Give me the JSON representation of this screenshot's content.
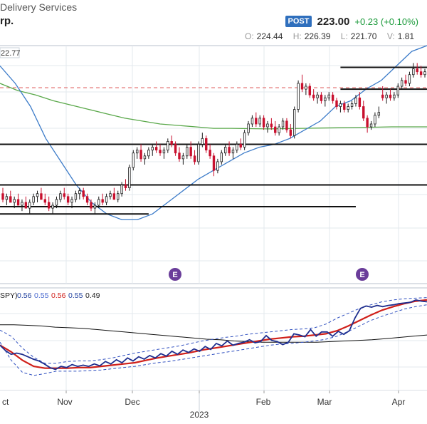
{
  "header": {
    "sector_text": "Delivery Services",
    "name_text": "rp.",
    "post_badge": "POST",
    "price": "223.00",
    "change": "+0.23 (+0.10%)",
    "ohlc": [
      {
        "key": "O:",
        "value": "224.44"
      },
      {
        "key": "H:",
        "value": "226.39"
      },
      {
        "key": "L:",
        "value": "221.70"
      },
      {
        "key": "V:",
        "value": "1.81"
      }
    ],
    "price_tag": "22.77",
    "indicator_label": "SPY)",
    "indicator_values": [
      {
        "text": "0.56",
        "color": "#1f3f9e"
      },
      {
        "text": "0.55",
        "color": "#4a6ad0"
      },
      {
        "text": "0.56",
        "color": "#d0201a"
      },
      {
        "text": "0.55",
        "color": "#1f3f9e"
      },
      {
        "text": "0.49",
        "color": "#222222"
      }
    ]
  },
  "colors": {
    "up": "#1a1a1a",
    "down": "#c8102e",
    "sma_fast": "#3d7cc9",
    "sma_slow": "#5aa84a",
    "resistance": "#e06666",
    "earnings_badge": "#6a3d9a",
    "rs_line": "#1f2f8f",
    "rs_sma": "#d0201a",
    "rs_band": "#3050c0",
    "rs_long": "#111111",
    "grid": "#e3e8ee"
  },
  "chart_data": {
    "type": "candlestick",
    "x_axis": {
      "months": [
        "ct",
        "Nov",
        "Dec",
        "Feb",
        "Mar",
        "Apr"
      ],
      "year_label": "2023"
    },
    "earnings_markers": [
      "E",
      "E"
    ],
    "price_panel": {
      "y_range": [
        150,
        232
      ],
      "resistance_level": 217.5,
      "horizontal_levels": [
        {
          "from_bar": 88,
          "to_bar": 148,
          "y": 224.5
        },
        {
          "from_bar": 88,
          "to_bar": 138,
          "y": 217.0
        },
        {
          "from_bar": 0,
          "to_bar": 160,
          "y": 198.0
        },
        {
          "from_bar": 0,
          "to_bar": 195,
          "y": 184.0
        },
        {
          "from_bar": 0,
          "to_bar": 92,
          "y": 176.5
        },
        {
          "from_bar": 0,
          "to_bar": 38,
          "y": 174.0
        }
      ],
      "sma_fast": [
        225,
        219,
        211,
        200,
        192,
        184,
        178,
        174,
        172,
        172,
        174,
        178,
        182,
        186,
        189,
        192,
        195,
        197,
        198,
        200,
        203,
        206,
        211,
        213,
        217,
        220,
        225,
        230,
        232
      ],
      "sma_slow": [
        219,
        216.5,
        215,
        213,
        211.5,
        210,
        208.5,
        207,
        206,
        205,
        204.5,
        204,
        203.5,
        203.5,
        203.4,
        203.3,
        203.4,
        203.5,
        203.6,
        203.7,
        203.8,
        203.9,
        204,
        204,
        204
      ],
      "candles": [
        {
          "o": 181,
          "h": 183,
          "l": 178,
          "c": 179
        },
        {
          "o": 179,
          "h": 181,
          "l": 177,
          "c": 180
        },
        {
          "o": 180,
          "h": 182,
          "l": 178,
          "c": 178
        },
        {
          "o": 178,
          "h": 180,
          "l": 176,
          "c": 179
        },
        {
          "o": 179,
          "h": 181,
          "l": 177,
          "c": 177
        },
        {
          "o": 177,
          "h": 179,
          "l": 175,
          "c": 178
        },
        {
          "o": 178,
          "h": 180,
          "l": 176,
          "c": 176
        },
        {
          "o": 176,
          "h": 179,
          "l": 174,
          "c": 178
        },
        {
          "o": 178,
          "h": 181,
          "l": 177,
          "c": 180
        },
        {
          "o": 180,
          "h": 182,
          "l": 178,
          "c": 181
        },
        {
          "o": 181,
          "h": 183,
          "l": 179,
          "c": 179
        },
        {
          "o": 179,
          "h": 181,
          "l": 177,
          "c": 178
        },
        {
          "o": 178,
          "h": 180,
          "l": 175,
          "c": 176
        },
        {
          "o": 176,
          "h": 178,
          "l": 174,
          "c": 177
        },
        {
          "o": 177,
          "h": 180,
          "l": 176,
          "c": 179
        },
        {
          "o": 179,
          "h": 182,
          "l": 178,
          "c": 181
        },
        {
          "o": 181,
          "h": 183,
          "l": 179,
          "c": 180
        },
        {
          "o": 180,
          "h": 181,
          "l": 177,
          "c": 178
        },
        {
          "o": 178,
          "h": 180,
          "l": 176,
          "c": 179
        },
        {
          "o": 179,
          "h": 182,
          "l": 178,
          "c": 181
        },
        {
          "o": 181,
          "h": 183,
          "l": 179,
          "c": 182
        },
        {
          "o": 182,
          "h": 183,
          "l": 179,
          "c": 180
        },
        {
          "o": 180,
          "h": 181,
          "l": 177,
          "c": 178
        },
        {
          "o": 178,
          "h": 179,
          "l": 175,
          "c": 176
        },
        {
          "o": 176,
          "h": 178,
          "l": 174,
          "c": 177
        },
        {
          "o": 177,
          "h": 180,
          "l": 176,
          "c": 179
        },
        {
          "o": 179,
          "h": 181,
          "l": 177,
          "c": 178
        },
        {
          "o": 178,
          "h": 181,
          "l": 177,
          "c": 180
        },
        {
          "o": 180,
          "h": 182,
          "l": 179,
          "c": 181
        },
        {
          "o": 181,
          "h": 183,
          "l": 179,
          "c": 179
        },
        {
          "o": 179,
          "h": 182,
          "l": 178,
          "c": 181
        },
        {
          "o": 181,
          "h": 185,
          "l": 180,
          "c": 184
        },
        {
          "o": 184,
          "h": 186,
          "l": 182,
          "c": 183
        },
        {
          "o": 183,
          "h": 191,
          "l": 182,
          "c": 190
        },
        {
          "o": 190,
          "h": 196,
          "l": 189,
          "c": 195
        },
        {
          "o": 195,
          "h": 197,
          "l": 193,
          "c": 196
        },
        {
          "o": 196,
          "h": 198,
          "l": 192,
          "c": 193
        },
        {
          "o": 193,
          "h": 195,
          "l": 191,
          "c": 194
        },
        {
          "o": 194,
          "h": 197,
          "l": 193,
          "c": 196
        },
        {
          "o": 196,
          "h": 198,
          "l": 194,
          "c": 197
        },
        {
          "o": 197,
          "h": 199,
          "l": 195,
          "c": 196
        },
        {
          "o": 196,
          "h": 198,
          "l": 194,
          "c": 195
        },
        {
          "o": 195,
          "h": 197,
          "l": 193,
          "c": 196
        },
        {
          "o": 196,
          "h": 200,
          "l": 195,
          "c": 199
        },
        {
          "o": 199,
          "h": 201,
          "l": 197,
          "c": 198
        },
        {
          "o": 198,
          "h": 199,
          "l": 194,
          "c": 195
        },
        {
          "o": 195,
          "h": 197,
          "l": 192,
          "c": 193
        },
        {
          "o": 193,
          "h": 195,
          "l": 191,
          "c": 194
        },
        {
          "o": 194,
          "h": 198,
          "l": 193,
          "c": 197
        },
        {
          "o": 197,
          "h": 199,
          "l": 193,
          "c": 194
        },
        {
          "o": 194,
          "h": 196,
          "l": 191,
          "c": 192
        },
        {
          "o": 192,
          "h": 199,
          "l": 191,
          "c": 198
        },
        {
          "o": 198,
          "h": 202,
          "l": 197,
          "c": 200
        },
        {
          "o": 200,
          "h": 201,
          "l": 195,
          "c": 196
        },
        {
          "o": 196,
          "h": 198,
          "l": 193,
          "c": 194
        },
        {
          "o": 194,
          "h": 195,
          "l": 187,
          "c": 189
        },
        {
          "o": 189,
          "h": 193,
          "l": 188,
          "c": 192
        },
        {
          "o": 192,
          "h": 196,
          "l": 191,
          "c": 195
        },
        {
          "o": 195,
          "h": 198,
          "l": 194,
          "c": 197
        },
        {
          "o": 197,
          "h": 199,
          "l": 194,
          "c": 195
        },
        {
          "o": 195,
          "h": 197,
          "l": 193,
          "c": 196
        },
        {
          "o": 196,
          "h": 199,
          "l": 195,
          "c": 198
        },
        {
          "o": 198,
          "h": 200,
          "l": 196,
          "c": 197
        },
        {
          "o": 197,
          "h": 203,
          "l": 196,
          "c": 202
        },
        {
          "o": 202,
          "h": 206,
          "l": 201,
          "c": 205
        },
        {
          "o": 205,
          "h": 208,
          "l": 204,
          "c": 207
        },
        {
          "o": 207,
          "h": 209,
          "l": 204,
          "c": 205
        },
        {
          "o": 205,
          "h": 208,
          "l": 204,
          "c": 207
        },
        {
          "o": 207,
          "h": 208,
          "l": 203,
          "c": 204
        },
        {
          "o": 204,
          "h": 206,
          "l": 202,
          "c": 205
        },
        {
          "o": 205,
          "h": 207,
          "l": 203,
          "c": 204
        },
        {
          "o": 204,
          "h": 206,
          "l": 201,
          "c": 202
        },
        {
          "o": 202,
          "h": 205,
          "l": 201,
          "c": 204
        },
        {
          "o": 204,
          "h": 207,
          "l": 203,
          "c": 206
        },
        {
          "o": 206,
          "h": 207,
          "l": 202,
          "c": 203
        },
        {
          "o": 203,
          "h": 205,
          "l": 200,
          "c": 201
        },
        {
          "o": 201,
          "h": 211,
          "l": 200,
          "c": 210
        },
        {
          "o": 210,
          "h": 220,
          "l": 209,
          "c": 219
        },
        {
          "o": 219,
          "h": 222,
          "l": 216,
          "c": 217
        },
        {
          "o": 217,
          "h": 219,
          "l": 215,
          "c": 218
        },
        {
          "o": 218,
          "h": 219,
          "l": 214,
          "c": 215
        },
        {
          "o": 215,
          "h": 217,
          "l": 213,
          "c": 214
        },
        {
          "o": 214,
          "h": 216,
          "l": 212,
          "c": 215
        },
        {
          "o": 215,
          "h": 216,
          "l": 212,
          "c": 213
        },
        {
          "o": 213,
          "h": 215,
          "l": 211,
          "c": 214
        },
        {
          "o": 214,
          "h": 216,
          "l": 213,
          "c": 215
        },
        {
          "o": 215,
          "h": 216,
          "l": 212,
          "c": 213
        },
        {
          "o": 213,
          "h": 214,
          "l": 210,
          "c": 211
        },
        {
          "o": 211,
          "h": 213,
          "l": 209,
          "c": 212
        },
        {
          "o": 212,
          "h": 213,
          "l": 209,
          "c": 210
        },
        {
          "o": 210,
          "h": 212,
          "l": 209,
          "c": 211
        },
        {
          "o": 211,
          "h": 213,
          "l": 210,
          "c": 212
        },
        {
          "o": 212,
          "h": 215,
          "l": 211,
          "c": 214
        },
        {
          "o": 214,
          "h": 216,
          "l": 210,
          "c": 211
        },
        {
          "o": 211,
          "h": 213,
          "l": 206,
          "c": 207
        },
        {
          "o": 207,
          "h": 208,
          "l": 202,
          "c": 204
        },
        {
          "o": 204,
          "h": 206,
          "l": 203,
          "c": 205
        },
        {
          "o": 205,
          "h": 209,
          "l": 204,
          "c": 208
        },
        {
          "o": 208,
          "h": 211,
          "l": 207,
          "c": 209
        },
        {
          "o": 215,
          "h": 218,
          "l": 213,
          "c": 214
        },
        {
          "o": 214,
          "h": 216,
          "l": 212,
          "c": 215
        },
        {
          "o": 215,
          "h": 217,
          "l": 213,
          "c": 214
        },
        {
          "o": 214,
          "h": 216,
          "l": 213,
          "c": 215
        },
        {
          "o": 215,
          "h": 219,
          "l": 214,
          "c": 218
        },
        {
          "o": 218,
          "h": 221,
          "l": 217,
          "c": 220
        },
        {
          "o": 220,
          "h": 222,
          "l": 218,
          "c": 219
        },
        {
          "o": 219,
          "h": 223,
          "l": 218,
          "c": 222
        },
        {
          "o": 222,
          "h": 226,
          "l": 221,
          "c": 224
        },
        {
          "o": 224,
          "h": 226,
          "l": 222,
          "c": 223
        },
        {
          "o": 223,
          "h": 225,
          "l": 221,
          "c": 222
        },
        {
          "o": 222,
          "h": 224,
          "l": 221,
          "c": 223
        }
      ]
    },
    "rs_panel": {
      "y_range": [
        0.43,
        0.6
      ],
      "labels": [
        "SPY)",
        "0.56",
        "0.55",
        "0.56",
        "0.55",
        "0.49"
      ]
    }
  }
}
